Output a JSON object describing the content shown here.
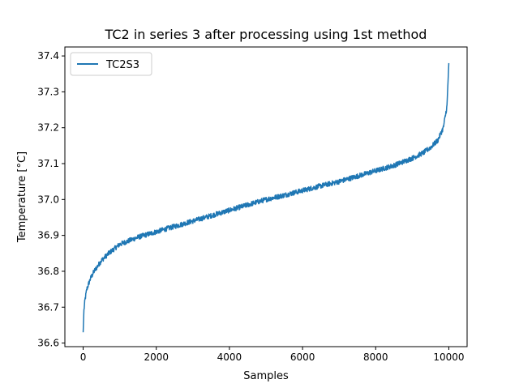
{
  "chart_data": {
    "type": "line",
    "title": "TC2 in series 3 after processing using 1st method",
    "xlabel": "Samples",
    "ylabel": "Temperature [°C]",
    "xlim": [
      -500,
      10500
    ],
    "ylim": [
      36.59,
      37.425
    ],
    "x_ticks": [
      0,
      2000,
      4000,
      6000,
      8000,
      10000
    ],
    "y_ticks": [
      36.6,
      36.7,
      36.8,
      36.9,
      37.0,
      37.1,
      37.2,
      37.3,
      37.4
    ],
    "x_tick_labels": [
      "0",
      "2000",
      "4000",
      "6000",
      "8000",
      "10000"
    ],
    "y_tick_labels": [
      "36.6",
      "36.7",
      "36.8",
      "36.9",
      "37.0",
      "37.1",
      "37.2",
      "37.3",
      "37.4"
    ],
    "grid": false,
    "legend_position": "upper-left",
    "series": [
      {
        "name": "TC2S3",
        "color": "#1f77b4",
        "noise_amplitude": 0.007,
        "points": [
          [
            0,
            36.63
          ],
          [
            20,
            36.69
          ],
          [
            50,
            36.72
          ],
          [
            100,
            36.75
          ],
          [
            200,
            36.78
          ],
          [
            300,
            36.8
          ],
          [
            500,
            36.83
          ],
          [
            700,
            36.85
          ],
          [
            1000,
            36.875
          ],
          [
            1500,
            36.895
          ],
          [
            2000,
            36.91
          ],
          [
            2500,
            36.925
          ],
          [
            3000,
            36.94
          ],
          [
            3500,
            36.955
          ],
          [
            4000,
            36.97
          ],
          [
            4500,
            36.985
          ],
          [
            5000,
            37.0
          ],
          [
            5500,
            37.012
          ],
          [
            6000,
            37.025
          ],
          [
            6500,
            37.038
          ],
          [
            7000,
            37.05
          ],
          [
            7500,
            37.065
          ],
          [
            8000,
            37.08
          ],
          [
            8500,
            37.095
          ],
          [
            9000,
            37.115
          ],
          [
            9300,
            37.13
          ],
          [
            9500,
            37.145
          ],
          [
            9700,
            37.165
          ],
          [
            9850,
            37.2
          ],
          [
            9950,
            37.26
          ],
          [
            10000,
            37.38
          ]
        ]
      }
    ]
  }
}
